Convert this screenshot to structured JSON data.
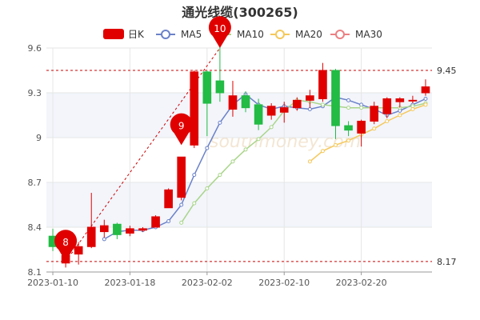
{
  "chart_data": {
    "type": "candlestick",
    "title": "通光线缆(300265)",
    "legend": [
      {
        "name": "日K",
        "color": "#e00000",
        "kind": "box"
      },
      {
        "name": "MA5",
        "color": "#6b82c9",
        "kind": "circle"
      },
      {
        "name": "MA10",
        "color": "#a9d58a",
        "kind": "circle"
      },
      {
        "name": "MA20",
        "color": "#f5c85a",
        "kind": "circle"
      },
      {
        "name": "MA30",
        "color": "#ec7f82",
        "kind": "circle"
      }
    ],
    "y_ticks": [
      "8.1",
      "8.4",
      "8.7",
      "9",
      "9.3",
      "9.6"
    ],
    "ylim": [
      8.1,
      9.6
    ],
    "x_ticks": [
      {
        "label": "2023-01-10",
        "index": 0
      },
      {
        "label": "2023-01-18",
        "index": 6
      },
      {
        "label": "2023-02-02",
        "index": 12
      },
      {
        "label": "2023-02-10",
        "index": 18
      },
      {
        "label": "2023-02-20",
        "index": 24
      }
    ],
    "ref_lines": [
      {
        "value": 9.45,
        "label": "9.45"
      },
      {
        "value": 8.17,
        "label": "8.17"
      }
    ],
    "pins": [
      {
        "label": "8",
        "index": 1,
        "value": 8.17
      },
      {
        "label": "9",
        "index": 10,
        "value": 8.95
      },
      {
        "label": "10",
        "index": 13,
        "value": 9.6
      }
    ],
    "colors": {
      "up": "#e00000",
      "down": "#22bb44",
      "grid": "#e6e6e6",
      "ref": "#cc0000",
      "band": "#f3f5fb"
    },
    "candles": [
      {
        "o": 8.34,
        "c": 8.27,
        "h": 8.39,
        "l": 8.24
      },
      {
        "o": 8.16,
        "c": 8.21,
        "h": 8.24,
        "l": 8.13
      },
      {
        "o": 8.22,
        "c": 8.27,
        "h": 8.3,
        "l": 8.15
      },
      {
        "o": 8.27,
        "c": 8.4,
        "h": 8.63,
        "l": 8.26
      },
      {
        "o": 8.37,
        "c": 8.41,
        "h": 8.45,
        "l": 8.33
      },
      {
        "o": 8.42,
        "c": 8.35,
        "h": 8.43,
        "l": 8.32
      },
      {
        "o": 8.36,
        "c": 8.39,
        "h": 8.41,
        "l": 8.34
      },
      {
        "o": 8.38,
        "c": 8.39,
        "h": 8.4,
        "l": 8.37
      },
      {
        "o": 8.4,
        "c": 8.47,
        "h": 8.48,
        "l": 8.4
      },
      {
        "o": 8.53,
        "c": 8.65,
        "h": 8.66,
        "l": 8.53
      },
      {
        "o": 8.6,
        "c": 8.87,
        "h": 8.87,
        "l": 8.58
      },
      {
        "o": 8.95,
        "c": 9.44,
        "h": 9.45,
        "l": 8.93
      },
      {
        "o": 9.44,
        "c": 9.23,
        "h": 9.45,
        "l": 9.01
      },
      {
        "o": 9.38,
        "c": 9.3,
        "h": 9.61,
        "l": 9.24
      },
      {
        "o": 9.19,
        "c": 9.28,
        "h": 9.38,
        "l": 9.14
      },
      {
        "o": 9.28,
        "c": 9.2,
        "h": 9.31,
        "l": 9.17
      },
      {
        "o": 9.22,
        "c": 9.09,
        "h": 9.26,
        "l": 9.05
      },
      {
        "o": 9.15,
        "c": 9.21,
        "h": 9.23,
        "l": 9.12
      },
      {
        "o": 9.17,
        "c": 9.2,
        "h": 9.24,
        "l": 9.1
      },
      {
        "o": 9.2,
        "c": 9.25,
        "h": 9.27,
        "l": 9.18
      },
      {
        "o": 9.25,
        "c": 9.28,
        "h": 9.32,
        "l": 9.2
      },
      {
        "o": 9.26,
        "c": 9.45,
        "h": 9.5,
        "l": 9.24
      },
      {
        "o": 9.45,
        "c": 9.08,
        "h": 9.46,
        "l": 8.99
      },
      {
        "o": 9.08,
        "c": 9.05,
        "h": 9.11,
        "l": 9.01
      },
      {
        "o": 9.03,
        "c": 9.11,
        "h": 9.12,
        "l": 8.94
      },
      {
        "o": 9.11,
        "c": 9.21,
        "h": 9.24,
        "l": 9.09
      },
      {
        "o": 9.16,
        "c": 9.26,
        "h": 9.27,
        "l": 9.13
      },
      {
        "o": 9.24,
        "c": 9.26,
        "h": 9.27,
        "l": 9.2
      },
      {
        "o": 9.25,
        "c": 9.25,
        "h": 9.28,
        "l": 9.23
      },
      {
        "o": 9.3,
        "c": 9.34,
        "h": 9.39,
        "l": 9.28
      }
    ],
    "ma5": [
      null,
      null,
      null,
      null,
      8.32,
      8.37,
      8.38,
      8.38,
      8.4,
      8.44,
      8.55,
      8.75,
      8.93,
      9.1,
      9.22,
      9.29,
      9.22,
      9.19,
      9.21,
      9.2,
      9.19,
      9.21,
      9.27,
      9.25,
      9.22,
      9.19,
      9.15,
      9.18,
      9.22,
      9.26
    ],
    "ma10": [
      null,
      null,
      null,
      null,
      null,
      null,
      null,
      null,
      null,
      null,
      8.43,
      8.56,
      8.66,
      8.75,
      8.84,
      8.92,
      8.99,
      9.07,
      9.18,
      9.25,
      9.24,
      9.22,
      9.21,
      9.2,
      9.2,
      9.2,
      9.2,
      9.2,
      9.21,
      9.23
    ],
    "ma20": [
      null,
      null,
      null,
      null,
      null,
      null,
      null,
      null,
      null,
      null,
      null,
      null,
      null,
      null,
      null,
      null,
      null,
      null,
      null,
      null,
      8.84,
      8.91,
      8.95,
      8.98,
      9.02,
      9.06,
      9.11,
      9.15,
      9.19,
      9.22
    ],
    "ma30": []
  }
}
